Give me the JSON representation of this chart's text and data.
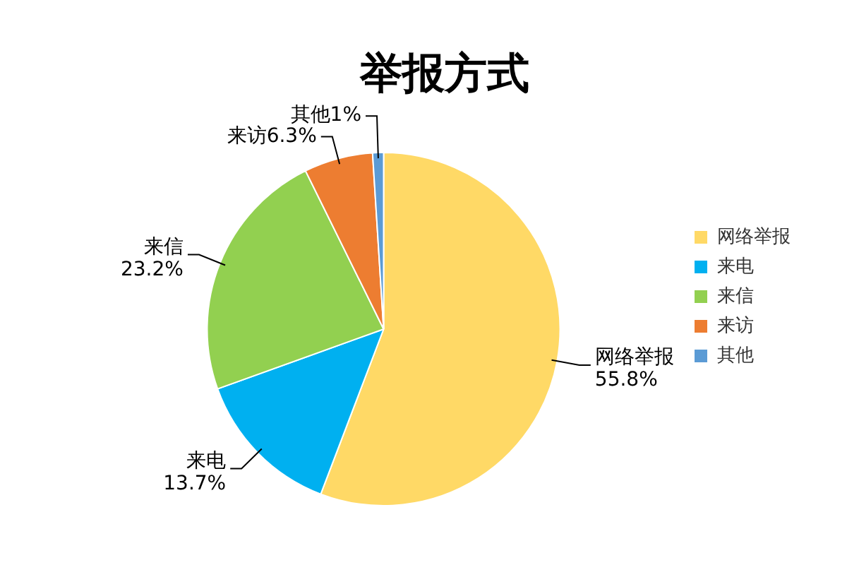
{
  "chart_data": {
    "type": "pie",
    "title": "举报方式",
    "categories": [
      "网络举报",
      "来电",
      "来信",
      "来访",
      "其他"
    ],
    "values": [
      55.8,
      13.7,
      23.2,
      6.3,
      1
    ],
    "value_labels": [
      "55.8%",
      "13.7%",
      "23.2%",
      "6.3%",
      "1%"
    ],
    "colors": [
      "#ffd966",
      "#00b0f0",
      "#92d050",
      "#ed7d31",
      "#5b9bd5"
    ],
    "legend": "right"
  }
}
